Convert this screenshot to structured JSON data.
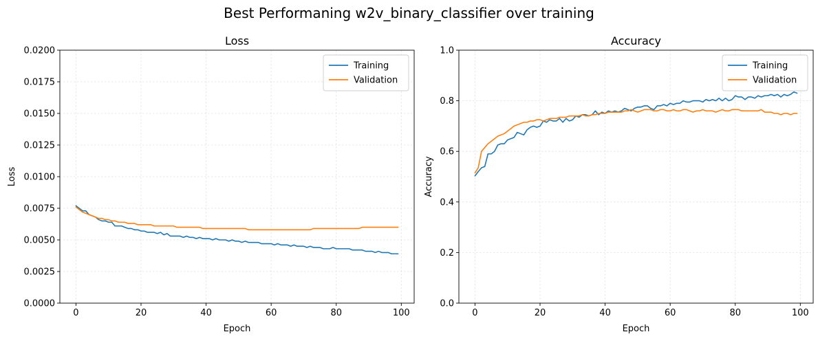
{
  "suptitle": "Best Performaning w2v_binary_classifier over training",
  "chart_data": [
    {
      "type": "line",
      "title": "Loss",
      "xlabel": "Epoch",
      "ylabel": "Loss",
      "xlim": [
        -4.95,
        103.95
      ],
      "ylim": [
        0,
        0.02
      ],
      "xticks": [
        0,
        20,
        40,
        60,
        80,
        100
      ],
      "yticks": [
        0,
        0.0025,
        0.005,
        0.0075,
        0.01,
        0.0125,
        0.015,
        0.0175,
        0.02
      ],
      "ytick_labels": [
        "0.0000",
        "0.0025",
        "0.0050",
        "0.0075",
        "0.0100",
        "0.0125",
        "0.0150",
        "0.0175",
        "0.0200"
      ],
      "xtick_labels": [
        "0",
        "20",
        "40",
        "60",
        "80",
        "100"
      ],
      "grid": true,
      "legend_position": "top-right",
      "x": [
        0,
        1,
        2,
        3,
        4,
        5,
        6,
        7,
        8,
        9,
        10,
        11,
        12,
        13,
        14,
        15,
        16,
        17,
        18,
        19,
        20,
        21,
        22,
        23,
        24,
        25,
        26,
        27,
        28,
        29,
        30,
        31,
        32,
        33,
        34,
        35,
        36,
        37,
        38,
        39,
        40,
        41,
        42,
        43,
        44,
        45,
        46,
        47,
        48,
        49,
        50,
        51,
        52,
        53,
        54,
        55,
        56,
        57,
        58,
        59,
        60,
        61,
        62,
        63,
        64,
        65,
        66,
        67,
        68,
        69,
        70,
        71,
        72,
        73,
        74,
        75,
        76,
        77,
        78,
        79,
        80,
        81,
        82,
        83,
        84,
        85,
        86,
        87,
        88,
        89,
        90,
        91,
        92,
        93,
        94,
        95,
        96,
        97,
        98,
        99
      ],
      "series": [
        {
          "name": "Training",
          "color": "#1f77b4",
          "values": [
            0.0077,
            0.0075,
            0.0073,
            0.0073,
            0.007,
            0.0069,
            0.0068,
            0.0066,
            0.0065,
            0.0065,
            0.0064,
            0.0064,
            0.0061,
            0.0061,
            0.0061,
            0.006,
            0.0059,
            0.0059,
            0.0058,
            0.0058,
            0.0057,
            0.0057,
            0.0056,
            0.0056,
            0.0056,
            0.0055,
            0.0056,
            0.0054,
            0.0055,
            0.0053,
            0.0053,
            0.0053,
            0.0053,
            0.0052,
            0.0053,
            0.0052,
            0.0052,
            0.0051,
            0.0052,
            0.0051,
            0.0051,
            0.0051,
            0.005,
            0.0051,
            0.005,
            0.005,
            0.005,
            0.0049,
            0.005,
            0.0049,
            0.0049,
            0.0048,
            0.0049,
            0.0048,
            0.0048,
            0.0048,
            0.0048,
            0.0047,
            0.0047,
            0.0047,
            0.0047,
            0.0046,
            0.0047,
            0.0046,
            0.0046,
            0.0046,
            0.0045,
            0.0046,
            0.0045,
            0.0045,
            0.0045,
            0.0044,
            0.0045,
            0.0044,
            0.0044,
            0.0044,
            0.0043,
            0.0043,
            0.0043,
            0.0044,
            0.0043,
            0.0043,
            0.0043,
            0.0043,
            0.0043,
            0.0042,
            0.0042,
            0.0042,
            0.0042,
            0.0041,
            0.0041,
            0.0041,
            0.004,
            0.0041,
            0.004,
            0.004,
            0.004,
            0.0039,
            0.0039,
            0.0039
          ]
        },
        {
          "name": "Validation",
          "color": "#ff7f0e",
          "values": [
            0.0076,
            0.0074,
            0.0072,
            0.0071,
            0.007,
            0.0069,
            0.0068,
            0.0067,
            0.0067,
            0.0066,
            0.0066,
            0.0065,
            0.0065,
            0.0064,
            0.0064,
            0.0064,
            0.0063,
            0.0063,
            0.0063,
            0.0062,
            0.0062,
            0.0062,
            0.0062,
            0.0062,
            0.0061,
            0.0061,
            0.0061,
            0.0061,
            0.0061,
            0.0061,
            0.0061,
            0.006,
            0.006,
            0.006,
            0.006,
            0.006,
            0.006,
            0.006,
            0.006,
            0.0059,
            0.0059,
            0.0059,
            0.0059,
            0.0059,
            0.0059,
            0.0059,
            0.0059,
            0.0059,
            0.0059,
            0.0059,
            0.0059,
            0.0059,
            0.0059,
            0.0058,
            0.0058,
            0.0058,
            0.0058,
            0.0058,
            0.0058,
            0.0058,
            0.0058,
            0.0058,
            0.0058,
            0.0058,
            0.0058,
            0.0058,
            0.0058,
            0.0058,
            0.0058,
            0.0058,
            0.0058,
            0.0058,
            0.0058,
            0.0059,
            0.0059,
            0.0059,
            0.0059,
            0.0059,
            0.0059,
            0.0059,
            0.0059,
            0.0059,
            0.0059,
            0.0059,
            0.0059,
            0.0059,
            0.0059,
            0.0059,
            0.006,
            0.006,
            0.006,
            0.006,
            0.006,
            0.006,
            0.006,
            0.006,
            0.006,
            0.006,
            0.006,
            0.006
          ]
        }
      ]
    },
    {
      "type": "line",
      "title": "Accuracy",
      "xlabel": "Epoch",
      "ylabel": "Accuracy",
      "xlim": [
        -4.95,
        103.95
      ],
      "ylim": [
        0,
        1.0
      ],
      "xticks": [
        0,
        20,
        40,
        60,
        80,
        100
      ],
      "yticks": [
        0,
        0.2,
        0.4,
        0.6,
        0.8,
        1.0
      ],
      "ytick_labels": [
        "0.0",
        "0.2",
        "0.4",
        "0.6",
        "0.8",
        "1.0"
      ],
      "xtick_labels": [
        "0",
        "20",
        "40",
        "60",
        "80",
        "100"
      ],
      "grid": true,
      "legend_position": "top-right",
      "x": [
        0,
        1,
        2,
        3,
        4,
        5,
        6,
        7,
        8,
        9,
        10,
        11,
        12,
        13,
        14,
        15,
        16,
        17,
        18,
        19,
        20,
        21,
        22,
        23,
        24,
        25,
        26,
        27,
        28,
        29,
        30,
        31,
        32,
        33,
        34,
        35,
        36,
        37,
        38,
        39,
        40,
        41,
        42,
        43,
        44,
        45,
        46,
        47,
        48,
        49,
        50,
        51,
        52,
        53,
        54,
        55,
        56,
        57,
        58,
        59,
        60,
        61,
        62,
        63,
        64,
        65,
        66,
        67,
        68,
        69,
        70,
        71,
        72,
        73,
        74,
        75,
        76,
        77,
        78,
        79,
        80,
        81,
        82,
        83,
        84,
        85,
        86,
        87,
        88,
        89,
        90,
        91,
        92,
        93,
        94,
        95,
        96,
        97,
        98,
        99
      ],
      "series": [
        {
          "name": "Training",
          "color": "#1f77b4",
          "values": [
            0.503,
            0.52,
            0.535,
            0.54,
            0.59,
            0.59,
            0.6,
            0.625,
            0.63,
            0.63,
            0.645,
            0.65,
            0.655,
            0.675,
            0.67,
            0.665,
            0.685,
            0.695,
            0.7,
            0.695,
            0.7,
            0.72,
            0.715,
            0.725,
            0.72,
            0.72,
            0.73,
            0.715,
            0.73,
            0.72,
            0.725,
            0.74,
            0.735,
            0.745,
            0.745,
            0.74,
            0.745,
            0.76,
            0.745,
            0.755,
            0.75,
            0.76,
            0.755,
            0.76,
            0.755,
            0.76,
            0.77,
            0.765,
            0.76,
            0.77,
            0.775,
            0.775,
            0.78,
            0.78,
            0.77,
            0.765,
            0.78,
            0.78,
            0.785,
            0.78,
            0.79,
            0.785,
            0.79,
            0.79,
            0.8,
            0.795,
            0.795,
            0.8,
            0.8,
            0.8,
            0.795,
            0.805,
            0.8,
            0.805,
            0.8,
            0.81,
            0.8,
            0.81,
            0.8,
            0.805,
            0.82,
            0.815,
            0.815,
            0.805,
            0.815,
            0.815,
            0.81,
            0.82,
            0.815,
            0.82,
            0.82,
            0.825,
            0.82,
            0.825,
            0.815,
            0.825,
            0.82,
            0.825,
            0.835,
            0.83
          ]
        },
        {
          "name": "Validation",
          "color": "#ff7f0e",
          "values": [
            0.515,
            0.535,
            0.6,
            0.615,
            0.63,
            0.64,
            0.65,
            0.66,
            0.665,
            0.67,
            0.68,
            0.69,
            0.7,
            0.705,
            0.71,
            0.715,
            0.715,
            0.72,
            0.72,
            0.725,
            0.725,
            0.72,
            0.725,
            0.73,
            0.73,
            0.73,
            0.735,
            0.735,
            0.735,
            0.74,
            0.74,
            0.74,
            0.74,
            0.745,
            0.74,
            0.74,
            0.745,
            0.745,
            0.75,
            0.75,
            0.75,
            0.755,
            0.755,
            0.755,
            0.755,
            0.755,
            0.76,
            0.76,
            0.765,
            0.76,
            0.755,
            0.76,
            0.765,
            0.765,
            0.765,
            0.76,
            0.76,
            0.765,
            0.765,
            0.76,
            0.76,
            0.765,
            0.76,
            0.76,
            0.765,
            0.765,
            0.76,
            0.755,
            0.76,
            0.76,
            0.765,
            0.76,
            0.76,
            0.76,
            0.755,
            0.76,
            0.765,
            0.76,
            0.76,
            0.765,
            0.765,
            0.765,
            0.76,
            0.76,
            0.76,
            0.76,
            0.76,
            0.76,
            0.765,
            0.755,
            0.755,
            0.755,
            0.75,
            0.75,
            0.745,
            0.75,
            0.75,
            0.745,
            0.75,
            0.75
          ]
        }
      ]
    }
  ]
}
